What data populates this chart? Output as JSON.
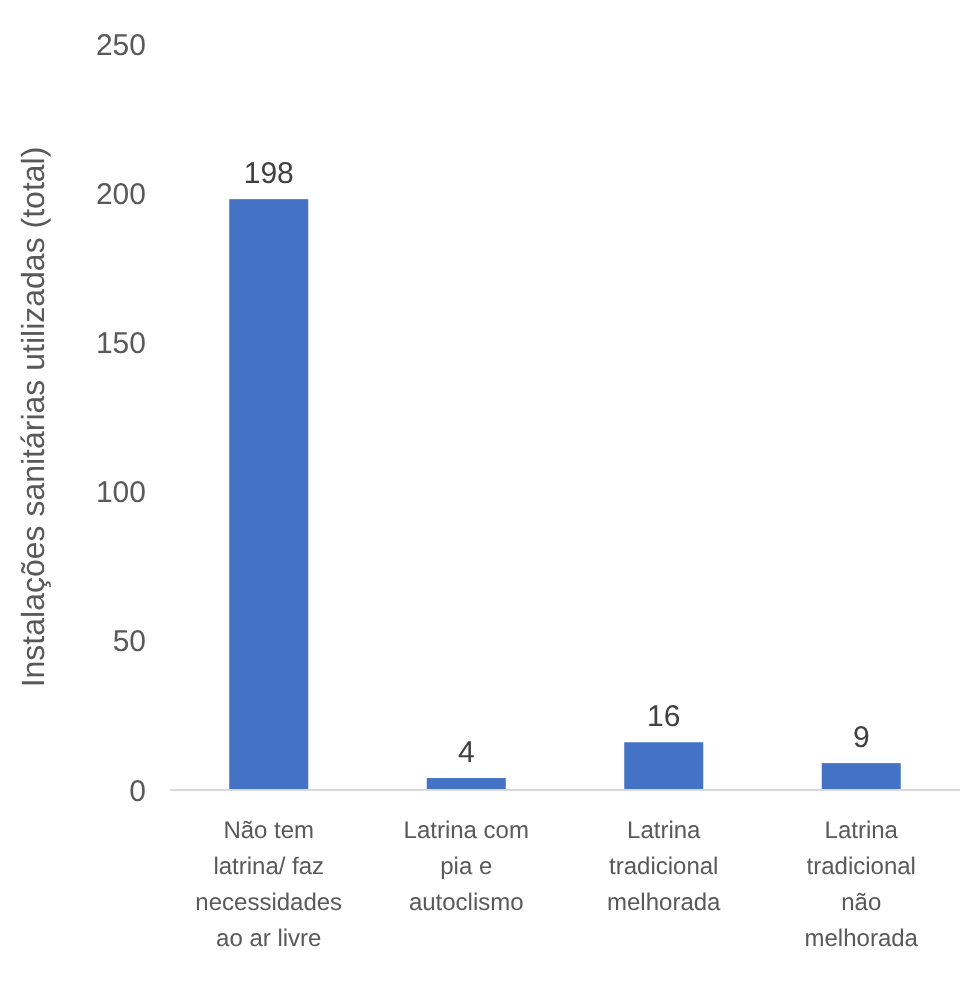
{
  "chart_data": {
    "type": "bar",
    "ylabel": "Instalações sanitárias utilizadas (total)",
    "categories": [
      "Não tem latrina/ faz necessidades ao ar livre",
      "Latrina com pia e autoclismo",
      "Latrina tradicional melhorada",
      "Latrina tradicional não melhorada"
    ],
    "values": [
      198,
      4,
      16,
      9
    ],
    "color": "#4472c4",
    "data_labels": true,
    "ylim": [
      0,
      250
    ],
    "yticks": [
      0,
      50,
      100,
      150,
      200,
      250
    ],
    "grid": false
  }
}
